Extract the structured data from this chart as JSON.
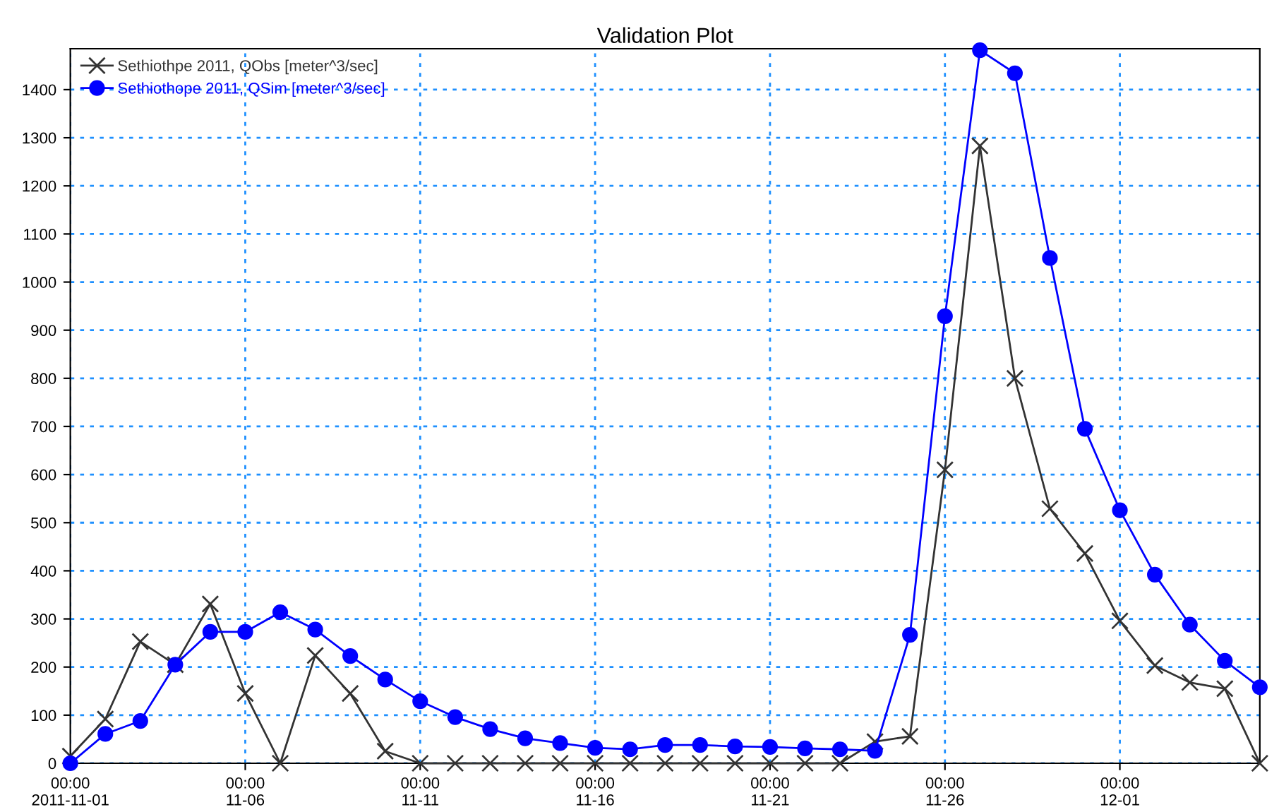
{
  "chart_data": {
    "type": "line",
    "title": "Validation Plot",
    "x": [
      "2011-11-01",
      "2011-11-02",
      "2011-11-03",
      "2011-11-04",
      "2011-11-05",
      "2011-11-06",
      "2011-11-07",
      "2011-11-08",
      "2011-11-09",
      "2011-11-10",
      "2011-11-11",
      "2011-11-12",
      "2011-11-13",
      "2011-11-14",
      "2011-11-15",
      "2011-11-16",
      "2011-11-17",
      "2011-11-18",
      "2011-11-19",
      "2011-11-20",
      "2011-11-21",
      "2011-11-22",
      "2011-11-23",
      "2011-11-24",
      "2011-11-25",
      "2011-11-26",
      "2011-11-27",
      "2011-11-28",
      "2011-11-29",
      "2011-11-30",
      "2011-12-01",
      "2011-12-02",
      "2011-12-03",
      "2011-12-04",
      "2011-12-05"
    ],
    "series": [
      {
        "name": "Sethiothpe 2011, QObs [meter^3/sec]",
        "color": "#333333",
        "marker": "cross",
        "values": [
          15,
          92,
          253,
          205,
          331,
          145,
          0,
          224,
          145,
          25,
          0,
          0,
          0,
          0,
          0,
          0,
          0,
          0,
          0,
          0,
          0,
          0,
          0,
          45,
          56,
          610,
          1283,
          800,
          529,
          436,
          296,
          203,
          168,
          155,
          0
        ]
      },
      {
        "name": "Sethiothope 2011, QSim [meter^3/sec]",
        "color": "#0000ff",
        "marker": "circle",
        "values": [
          0,
          61,
          88,
          205,
          273,
          273,
          314,
          278,
          223,
          174,
          129,
          96,
          71,
          52,
          42,
          32,
          29,
          38,
          38,
          35,
          34,
          31,
          29,
          26,
          267,
          929,
          1482,
          1434,
          1050,
          695,
          526,
          392,
          288,
          213,
          158
        ]
      }
    ],
    "xlim": [
      "2011-11-01",
      "2011-12-05"
    ],
    "xticks": [
      {
        "value": "2011-11-01",
        "label": "00:00\n2011-11-01"
      },
      {
        "value": "2011-11-06",
        "label": "00:00\n11-06"
      },
      {
        "value": "2011-11-11",
        "label": "00:00\n11-11"
      },
      {
        "value": "2011-11-16",
        "label": "00:00\n11-16"
      },
      {
        "value": "2011-11-21",
        "label": "00:00\n11-21"
      },
      {
        "value": "2011-11-26",
        "label": "00:00\n11-26"
      },
      {
        "value": "2011-12-01",
        "label": "00:00\n12-01"
      }
    ],
    "ylim": [
      0,
      1485
    ],
    "yticks": [
      0,
      100,
      200,
      300,
      400,
      500,
      600,
      700,
      800,
      900,
      1000,
      1100,
      1200,
      1300,
      1400
    ],
    "grid": true,
    "legend": "top left",
    "line_style": "solid"
  }
}
